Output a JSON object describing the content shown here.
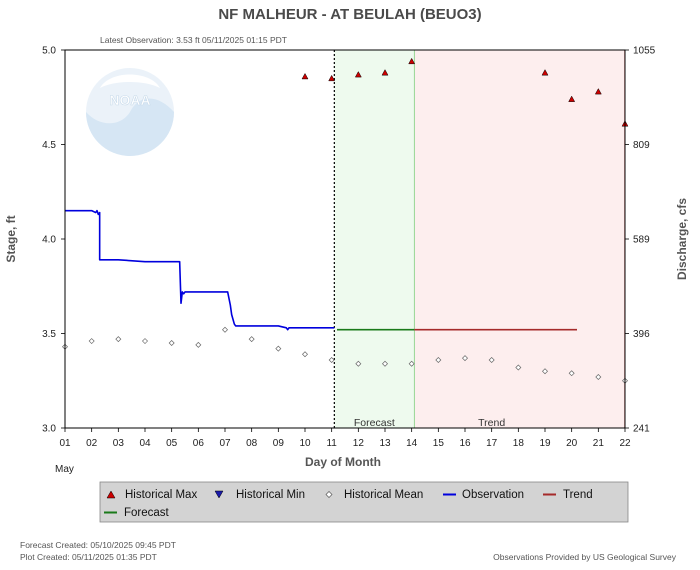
{
  "title": "NF MALHEUR - AT BEULAH  (BEUO3)",
  "latest_observation": "Latest Observation: 3.53 ft 05/11/2025 01:15 PDT",
  "footer": {
    "forecast_created": "Forecast Created: 05/10/2025 09:45 PDT",
    "plot_created": "Plot Created: 05/11/2025 01:35 PDT",
    "provider": "Observations Provided by US Geological Survey"
  },
  "logo_text": "NOAA",
  "colors": {
    "observation": "#0000dd",
    "forecast": "#1a7a1a",
    "trend": "#a52a2a",
    "historical_max": "#cc0000",
    "historical_min": "#1a1aaa",
    "forecast_zone": "#eefaee",
    "trend_zone": "#fdeeee",
    "legend_bg": "#d3d3d3"
  },
  "chart_data": {
    "type": "line",
    "xlabel": "Day of Month",
    "x_month_label": "May",
    "ylabel_left": "Stage, ft",
    "ylabel_right": "Discharge, cfs",
    "xlim": [
      1,
      22
    ],
    "ylim": [
      3.0,
      5.0
    ],
    "x_ticks": [
      "01",
      "02",
      "03",
      "04",
      "05",
      "06",
      "07",
      "08",
      "09",
      "10",
      "11",
      "12",
      "13",
      "14",
      "15",
      "16",
      "17",
      "18",
      "19",
      "20",
      "21",
      "22"
    ],
    "y_ticks_left": [
      "3.0",
      "3.5",
      "4.0",
      "4.5",
      "5.0"
    ],
    "y_ticks_right": [
      {
        "stage": 3.0,
        "label": "241"
      },
      {
        "stage": 3.5,
        "label": "396"
      },
      {
        "stage": 4.0,
        "label": "589"
      },
      {
        "stage": 4.5,
        "label": "809"
      },
      {
        "stage": 5.0,
        "label": "1055"
      }
    ],
    "now_x": 11.1,
    "zones": [
      {
        "name": "Forecast",
        "x0": 11.1,
        "x1": 14.1
      },
      {
        "name": "Trend",
        "x0": 14.1,
        "x1": 22
      }
    ],
    "legend": [
      {
        "key": "historical_max",
        "label": "Historical Max"
      },
      {
        "key": "historical_min",
        "label": "Historical Min"
      },
      {
        "key": "historical_mean",
        "label": "Historical Mean"
      },
      {
        "key": "observation",
        "label": "Observation"
      },
      {
        "key": "trend",
        "label": "Trend"
      },
      {
        "key": "forecast",
        "label": "Forecast"
      }
    ],
    "series": [
      {
        "name": "Observation",
        "x": [
          1.0,
          2.0,
          2.15,
          2.2,
          2.25,
          2.3,
          2.3,
          3.0,
          4.0,
          5.0,
          5.3,
          5.35,
          5.4,
          5.45,
          5.5,
          6.0,
          6.5,
          7.0,
          7.1,
          7.2,
          7.25,
          7.35,
          7.4,
          8.0,
          9.0,
          9.3,
          9.35,
          9.4,
          10.0,
          11.1
        ],
        "y": [
          4.15,
          4.15,
          4.14,
          4.15,
          4.13,
          4.14,
          3.89,
          3.89,
          3.88,
          3.88,
          3.88,
          3.66,
          3.72,
          3.71,
          3.72,
          3.72,
          3.72,
          3.72,
          3.72,
          3.65,
          3.6,
          3.55,
          3.54,
          3.54,
          3.54,
          3.53,
          3.52,
          3.53,
          3.53,
          3.53
        ]
      },
      {
        "name": "Forecast",
        "x": [
          11.2,
          14.1
        ],
        "y": [
          3.52,
          3.52
        ]
      },
      {
        "name": "Trend",
        "x": [
          14.1,
          20.2
        ],
        "y": [
          3.52,
          3.52
        ]
      },
      {
        "name": "Historical Max",
        "x": [
          10,
          11,
          12,
          13,
          14,
          19,
          20,
          21,
          22
        ],
        "y": [
          4.86,
          4.85,
          4.87,
          4.88,
          4.94,
          4.88,
          4.74,
          4.78,
          4.61
        ]
      },
      {
        "name": "Historical Mean",
        "x": [
          1,
          2,
          3,
          4,
          5,
          6,
          7,
          8,
          9,
          10,
          11,
          12,
          13,
          14,
          15,
          16,
          17,
          18,
          19,
          20,
          21,
          22
        ],
        "y": [
          3.43,
          3.46,
          3.47,
          3.46,
          3.45,
          3.44,
          3.52,
          3.47,
          3.42,
          3.39,
          3.36,
          3.34,
          3.34,
          3.34,
          3.36,
          3.37,
          3.36,
          3.32,
          3.3,
          3.29,
          3.27,
          3.25
        ]
      }
    ]
  }
}
